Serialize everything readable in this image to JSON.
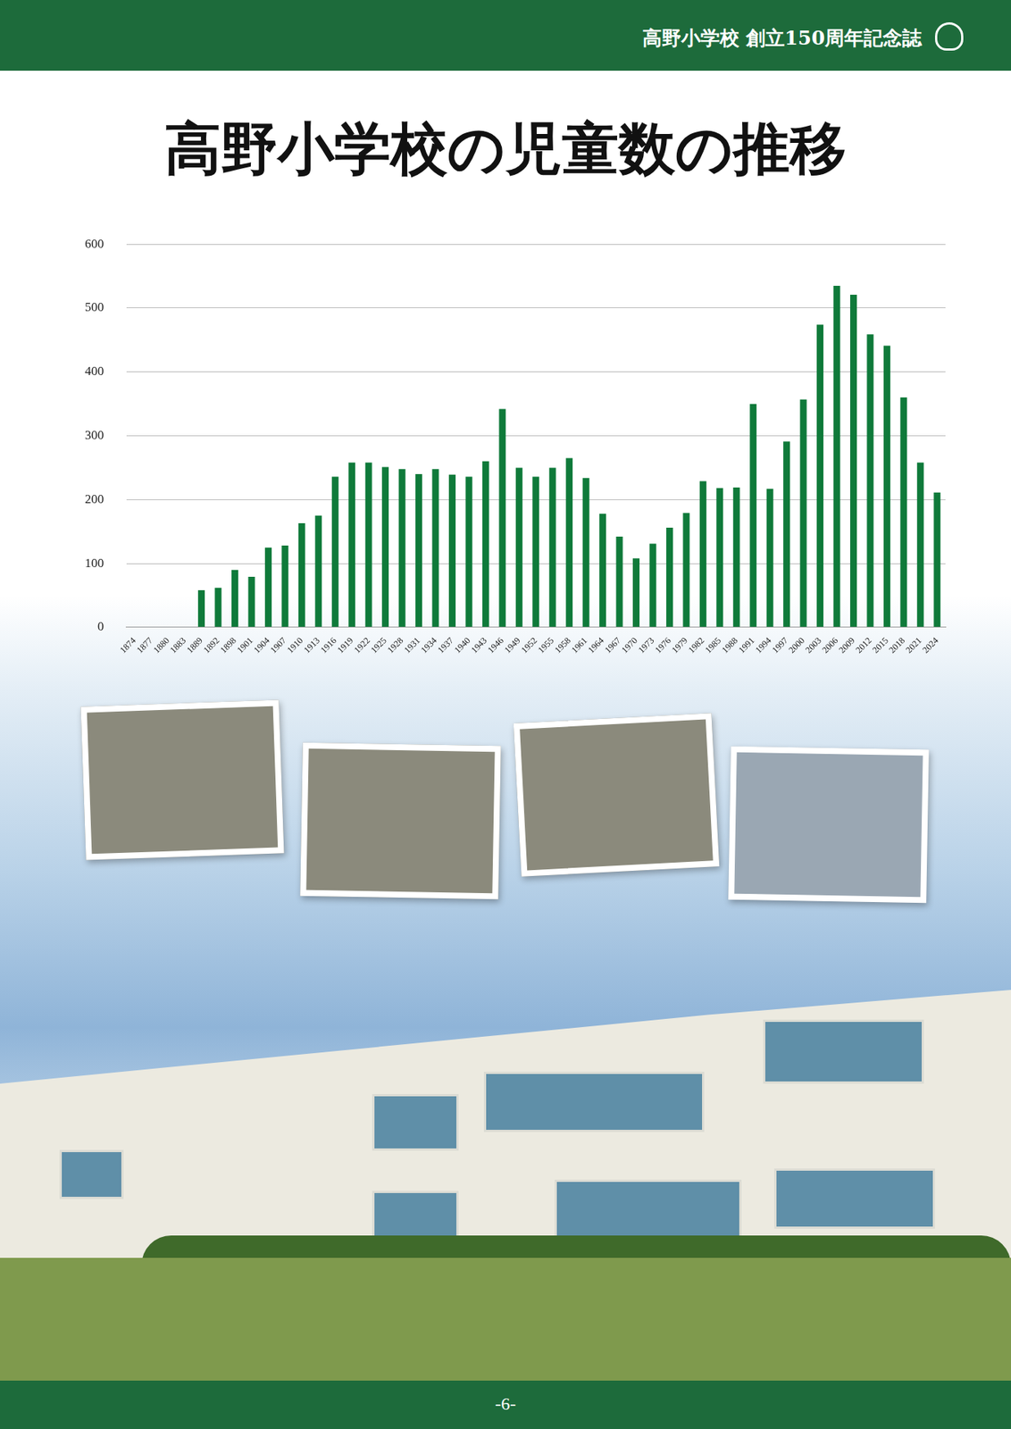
{
  "header": {
    "text": "高野小学校 創立150周年記念誌"
  },
  "footer": {
    "page": "-6-"
  },
  "chart_data": {
    "type": "bar",
    "title": "高野小学校の児童数の推移",
    "categories": [
      "1874",
      "1877",
      "1880",
      "1883",
      "1889",
      "1892",
      "1898",
      "1901",
      "1904",
      "1907",
      "1910",
      "1913",
      "1916",
      "1919",
      "1922",
      "1925",
      "1928",
      "1931",
      "1934",
      "1937",
      "1940",
      "1943",
      "1946",
      "1949",
      "1952",
      "1955",
      "1958",
      "1961",
      "1964",
      "1967",
      "1970",
      "1973",
      "1976",
      "1979",
      "1982",
      "1985",
      "1988",
      "1991",
      "1994",
      "1997",
      "2000",
      "2003",
      "2006",
      "2009",
      "2012",
      "2015",
      "2018",
      "2021",
      "2024"
    ],
    "values": [
      null,
      null,
      null,
      null,
      58,
      62,
      90,
      79,
      125,
      128,
      163,
      175,
      236,
      258,
      258,
      251,
      248,
      240,
      248,
      239,
      236,
      260,
      342,
      250,
      236,
      250,
      265,
      234,
      178,
      142,
      108,
      131,
      156,
      179,
      229,
      218,
      219,
      350,
      217,
      291,
      357,
      474,
      535,
      521,
      459,
      441,
      360,
      258,
      211
    ],
    "color": "#0f7a3a",
    "ylim": [
      0,
      600
    ],
    "yticks": [
      0,
      100,
      200,
      300,
      400,
      500,
      600
    ],
    "grid": true
  }
}
